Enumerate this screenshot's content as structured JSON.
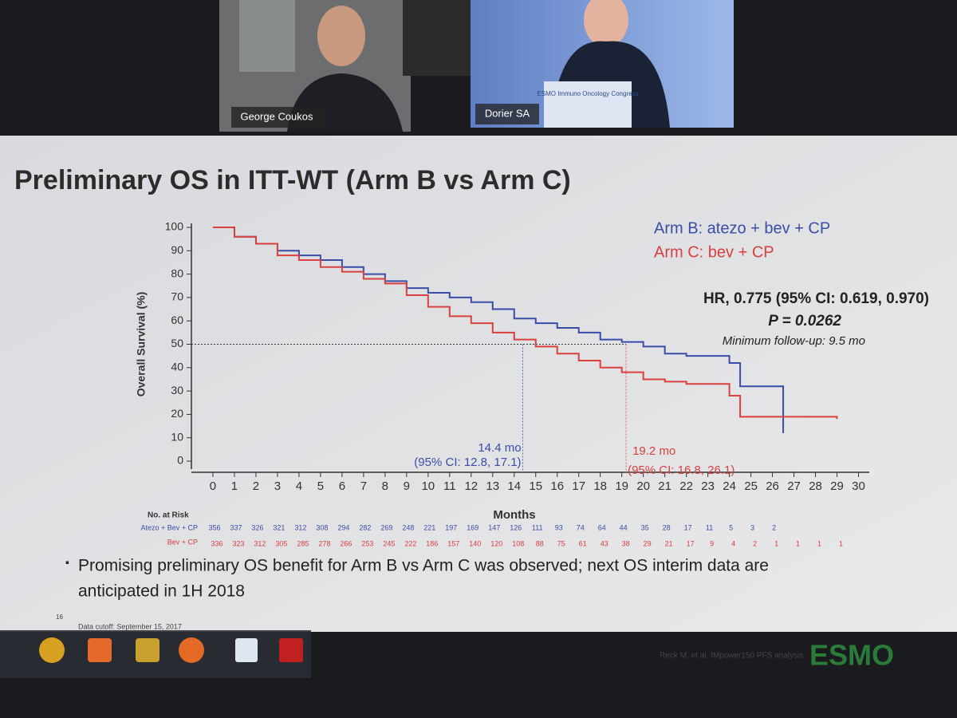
{
  "call": {
    "participants": [
      "George Coukos",
      "Dorier SA"
    ],
    "podium_text": "ESMO Immuno Oncology Congress"
  },
  "slide": {
    "title": "Preliminary OS in ITT-WT (Arm B vs Arm C)",
    "bullet": [
      "Promising preliminary OS benefit for Arm B vs Arm C was observed; next OS interim data are",
      "anticipated in 1H 2018"
    ],
    "page_number": "16",
    "footnote": "Data cutoff: September 15, 2017",
    "citation": "Reck M, et al. IMpower150 PFS analysis.",
    "logo": "ESMO"
  },
  "chart_data": {
    "type": "line",
    "step": true,
    "x_label": "Months",
    "y_label": "Overall Survival (%)",
    "xlim": [
      -1,
      30.5
    ],
    "ylim": [
      0,
      100
    ],
    "xticks": [
      0,
      1,
      2,
      3,
      4,
      5,
      6,
      7,
      8,
      9,
      10,
      11,
      12,
      13,
      14,
      15,
      16,
      17,
      18,
      19,
      20,
      21,
      22,
      23,
      24,
      25,
      26,
      27,
      28,
      29,
      30
    ],
    "yticks": [
      0,
      10,
      20,
      30,
      40,
      50,
      60,
      70,
      80,
      90,
      100
    ],
    "series": [
      {
        "name": "Arm B: atezo + bev + CP",
        "color": "#3a4da6",
        "x": [
          0,
          1,
          2,
          3,
          4,
          5,
          6,
          7,
          8,
          9,
          10,
          11,
          12,
          13,
          14,
          15,
          16,
          17,
          18,
          19,
          20,
          21,
          22,
          23,
          24,
          24.5,
          26.5
        ],
        "values": [
          100,
          96,
          93,
          90,
          88,
          86,
          83,
          80,
          77,
          74,
          72,
          70,
          68,
          65,
          61,
          59,
          57,
          55,
          52,
          51,
          49,
          46,
          45,
          45,
          42,
          32,
          12
        ]
      },
      {
        "name": "Arm C: bev + CP",
        "color": "#d9403f",
        "x": [
          0,
          1,
          2,
          3,
          4,
          5,
          6,
          7,
          8,
          9,
          10,
          11,
          12,
          13,
          14,
          15,
          16,
          17,
          18,
          19,
          20,
          21,
          22,
          23,
          24,
          24.5,
          29
        ],
        "values": [
          100,
          96,
          93,
          88,
          86,
          83,
          81,
          78,
          76,
          71,
          66,
          62,
          59,
          55,
          52,
          49,
          46,
          43,
          40,
          38,
          35,
          34,
          33,
          33,
          28,
          19,
          18
        ]
      }
    ],
    "reference_y": 50,
    "reference_x": [
      14.4,
      19.2
    ],
    "annotations": [
      "14.4 mo",
      "(95% CI: 12.8, 17.1)",
      "19.2 mo",
      "(95% CI: 16.8, 26.1)"
    ],
    "stats": [
      "HR, 0.775 (95% CI: 0.619, 0.970)",
      "P = 0.0262",
      "Minimum follow-up: 9.5 mo"
    ],
    "risk_table": {
      "title": "No. at Risk",
      "rows": [
        {
          "label": "Atezo + Bev + CP",
          "values": [
            356,
            337,
            326,
            321,
            312,
            308,
            294,
            282,
            269,
            248,
            221,
            197,
            169,
            147,
            126,
            111,
            93,
            74,
            64,
            44,
            35,
            28,
            17,
            11,
            5,
            3,
            2
          ]
        },
        {
          "label": "Bev + CP",
          "values": [
            336,
            323,
            312,
            305,
            285,
            278,
            266,
            253,
            245,
            222,
            186,
            157,
            140,
            120,
            108,
            88,
            75,
            61,
            43,
            38,
            29,
            21,
            17,
            9,
            4,
            2,
            1,
            1,
            1,
            1
          ]
        }
      ]
    }
  }
}
